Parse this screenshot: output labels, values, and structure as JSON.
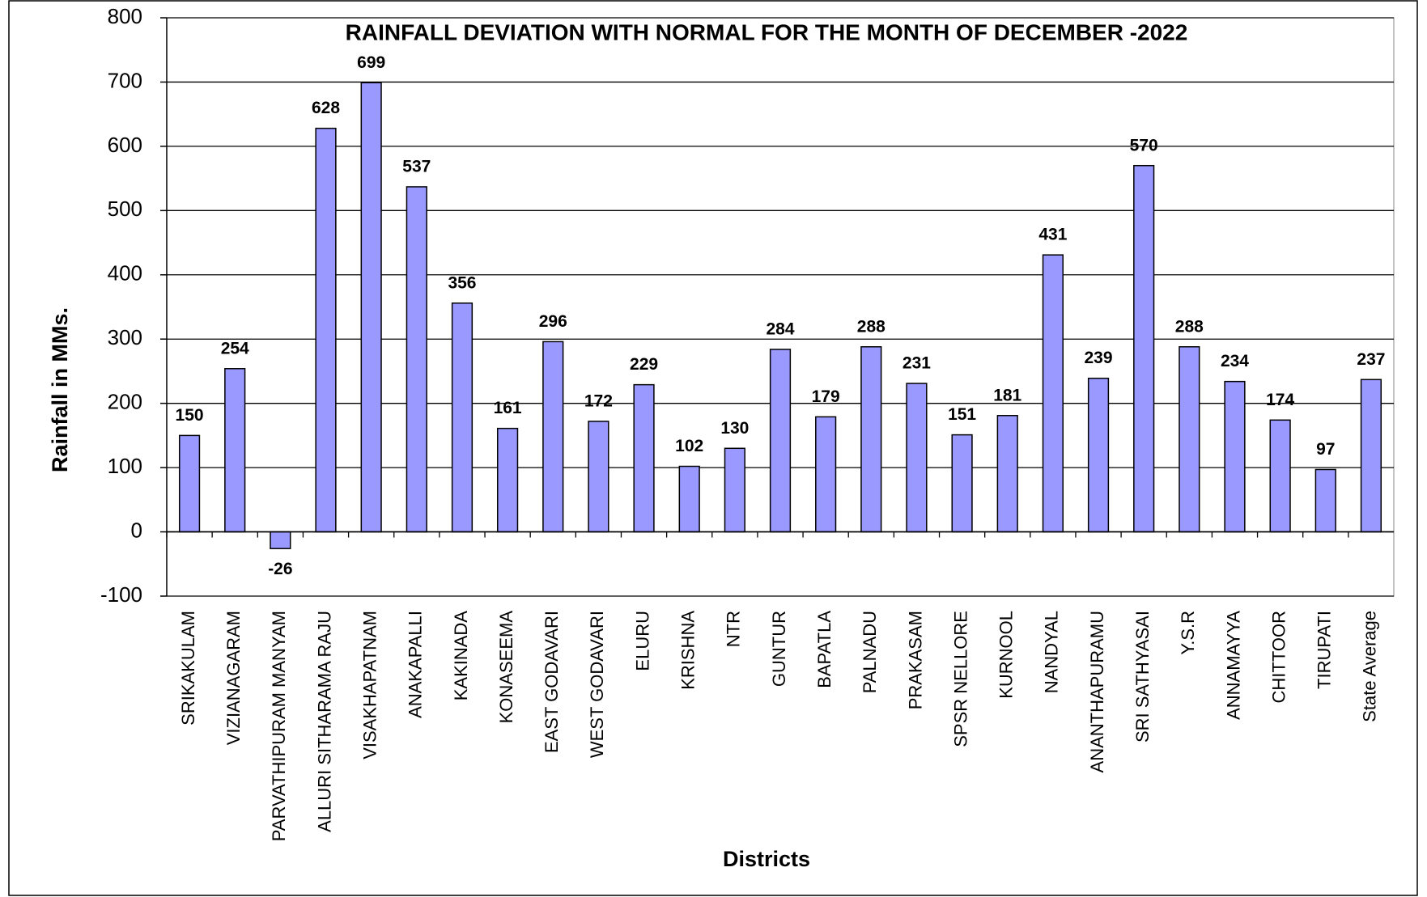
{
  "chart_data": {
    "type": "bar",
    "title": "RAINFALL  DEVIATION WITH NORMAL FOR THE MONTH OF DECEMBER -2022",
    "x_label": "Districts",
    "y_label": "Rainfall in MMs.",
    "categories": [
      "SRIKAKULAM",
      "VIZIANAGARAM",
      "PARVATHIPURAM MANYAM",
      "ALLURI SITHARAMA RAJU",
      "VISAKHAPATNAM",
      "ANAKAPALLI",
      "KAKINADA",
      "KONASEEMA",
      "EAST GODAVARI",
      "WEST GODAVARI",
      "ELURU",
      "KRISHNA",
      "NTR",
      "GUNTUR",
      "BAPATLA",
      "PALNADU",
      "PRAKASAM",
      "SPSR NELLORE",
      "KURNOOL",
      "NANDYAL",
      "ANANTHAPURAMU",
      "SRI SATHYASAI",
      "Y.S.R",
      "ANNAMAYYA",
      "CHITTOOR",
      "TIRUPATI",
      "State Average"
    ],
    "values": [
      150,
      254,
      -26,
      628,
      699,
      537,
      356,
      161,
      296,
      172,
      229,
      102,
      130,
      284,
      179,
      288,
      231,
      151,
      181,
      431,
      239,
      570,
      288,
      234,
      174,
      97,
      237
    ],
    "color": "#9999ff",
    "ylim": [
      -100,
      800
    ],
    "yticks": [
      -100,
      0,
      100,
      200,
      300,
      400,
      500,
      600,
      700,
      800
    ],
    "grid": true
  }
}
